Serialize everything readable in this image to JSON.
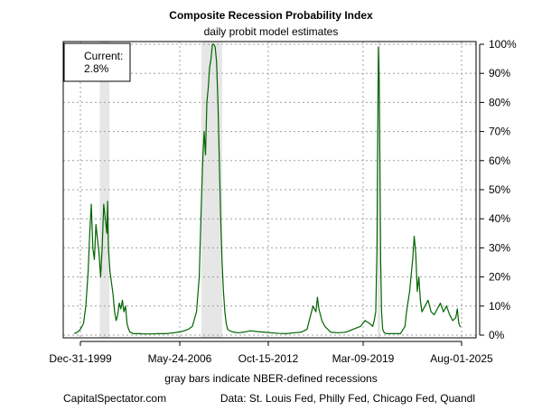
{
  "chart_data": {
    "type": "line",
    "title": "Composite Recession Probability Index",
    "subtitle": "daily probit model estimates",
    "xlabel": "gray bars indicate NBER-defined recessions",
    "ylabel": "",
    "source_left": "CapitalSpectator.com",
    "source_right": "Data: St. Louis Fed, Philly Fed, Chicago Fed, Quandl",
    "current_label": "Current:",
    "current_value": "2.8%",
    "x_ticks": [
      "Dec-31-1999",
      "May-24-2006",
      "Oct-15-2012",
      "Mar-09-2019",
      "Aug-01-2025"
    ],
    "y_ticks": [
      "0%",
      "10%",
      "20%",
      "30%",
      "40%",
      "50%",
      "60%",
      "70%",
      "80%",
      "90%",
      "100%"
    ],
    "ylim": [
      0,
      100
    ],
    "xlim": [
      1999.5,
      2025.6
    ],
    "grid": true,
    "line_color": "#006400",
    "recession_color": "#e6e6e6",
    "recessions": [
      {
        "start": 2001.25,
        "end": 2001.87
      },
      {
        "start": 2007.95,
        "end": 2009.45
      },
      {
        "start": 2020.12,
        "end": 2020.3
      }
    ],
    "series": [
      {
        "x": [
          1999.6,
          1999.8,
          2000.0,
          2000.2,
          2000.35,
          2000.5,
          2000.6,
          2000.7,
          2000.8,
          2000.9,
          2001.0,
          2001.1,
          2001.2,
          2001.3,
          2001.4,
          2001.5,
          2001.6,
          2001.7,
          2001.75,
          2001.8,
          2001.9,
          2002.0,
          2002.1,
          2002.2,
          2002.3,
          2002.4,
          2002.5,
          2002.6,
          2002.7,
          2002.8,
          2002.9,
          2003.0,
          2003.1,
          2003.2,
          2003.3,
          2003.4,
          2003.5,
          2003.6,
          2003.7,
          2003.8,
          2003.9,
          2004.0,
          2004.5,
          2005.0,
          2005.5,
          2006.0,
          2006.5,
          2007.0,
          2007.3,
          2007.6,
          2007.8,
          2007.95,
          2008.05,
          2008.15,
          2008.25,
          2008.35,
          2008.45,
          2008.55,
          2008.65,
          2008.75,
          2008.85,
          2008.95,
          2009.05,
          2009.15,
          2009.25,
          2009.35,
          2009.45,
          2009.55,
          2009.65,
          2009.75,
          2009.85,
          2010.0,
          2010.3,
          2010.6,
          2011.0,
          2011.5,
          2012.0,
          2012.5,
          2013.0,
          2013.5,
          2014.0,
          2014.5,
          2015.0,
          2015.4,
          2015.6,
          2015.8,
          2016.0,
          2016.1,
          2016.2,
          2016.4,
          2016.6,
          2016.8,
          2017.0,
          2017.5,
          2018.0,
          2018.5,
          2019.0,
          2019.3,
          2019.6,
          2019.8,
          2019.9,
          2020.0,
          2020.08,
          2020.12,
          2020.17,
          2020.22,
          2020.27,
          2020.32,
          2020.38,
          2020.45,
          2020.55,
          2020.7,
          2020.9,
          2021.0,
          2021.3,
          2021.6,
          2021.9,
          2022.0,
          2022.2,
          2022.4,
          2022.5,
          2022.6,
          2022.7,
          2022.8,
          2022.9,
          2023.0,
          2023.2,
          2023.4,
          2023.6,
          2023.8,
          2024.0,
          2024.2,
          2024.4,
          2024.6,
          2024.8,
          2025.0,
          2025.2,
          2025.3,
          2025.4,
          2025.5
        ],
        "y": [
          0.5,
          1,
          2,
          4,
          10,
          22,
          35,
          45,
          30,
          26,
          38,
          33,
          28,
          20,
          30,
          45,
          40,
          35,
          46,
          30,
          22,
          18,
          14,
          8,
          5,
          7,
          11,
          9,
          12,
          8,
          10,
          4,
          2,
          1,
          0.8,
          0.5,
          0.5,
          0.5,
          0.5,
          0.5,
          0.5,
          0.4,
          0.4,
          0.5,
          0.5,
          0.8,
          1.2,
          2,
          3,
          8,
          20,
          45,
          60,
          70,
          62,
          80,
          85,
          92,
          95,
          100,
          100,
          99,
          94,
          80,
          60,
          40,
          25,
          15,
          8,
          4,
          2,
          1.5,
          1,
          0.8,
          1,
          1.5,
          1.2,
          1,
          0.8,
          0.6,
          0.5,
          0.8,
          1,
          2,
          6,
          10,
          8,
          13,
          9,
          5,
          3,
          2,
          1,
          0.8,
          1,
          2,
          3,
          5,
          4,
          3,
          5,
          8,
          30,
          65,
          99,
          88,
          60,
          25,
          8,
          2,
          0.8,
          0.5,
          0.5,
          0.5,
          0.5,
          0.5,
          3,
          8,
          15,
          26,
          34,
          28,
          15,
          20,
          12,
          8,
          10,
          12,
          8,
          7,
          9,
          11,
          8,
          10,
          7,
          5,
          6,
          9,
          4,
          2.8
        ]
      }
    ]
  }
}
